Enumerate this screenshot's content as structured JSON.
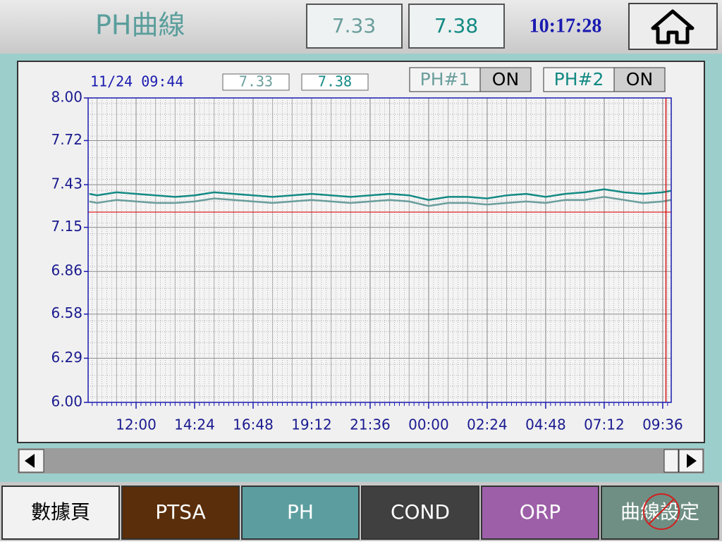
{
  "header": {
    "title": "PH曲線",
    "readouts": [
      "7.33",
      "7.38"
    ],
    "clock": "10:17:28"
  },
  "chart_data": {
    "type": "line",
    "cursor_label": "11/24 09:44",
    "cursor": "09:44",
    "cursor_values": [
      7.33,
      7.38
    ],
    "x": [
      "10:05",
      "10:24",
      "11:12",
      "12:00",
      "12:48",
      "13:36",
      "14:24",
      "15:12",
      "16:00",
      "16:48",
      "17:36",
      "18:24",
      "19:12",
      "20:00",
      "20:48",
      "21:36",
      "22:24",
      "23:12",
      "00:00",
      "00:48",
      "01:36",
      "02:24",
      "03:12",
      "04:00",
      "04:48",
      "05:36",
      "06:24",
      "07:12",
      "08:00",
      "08:48",
      "09:36",
      "09:56"
    ],
    "series": [
      {
        "name": "PH#1",
        "status": "ON",
        "color": "#6a9e9c",
        "values": [
          7.32,
          7.31,
          7.33,
          7.32,
          7.31,
          7.31,
          7.32,
          7.34,
          7.33,
          7.32,
          7.31,
          7.32,
          7.33,
          7.32,
          7.31,
          7.32,
          7.33,
          7.32,
          7.29,
          7.31,
          7.31,
          7.3,
          7.31,
          7.32,
          7.31,
          7.33,
          7.33,
          7.35,
          7.33,
          7.31,
          7.32,
          7.33
        ]
      },
      {
        "name": "PH#2",
        "status": "ON",
        "color": "#138a84",
        "values": [
          7.37,
          7.36,
          7.38,
          7.37,
          7.36,
          7.35,
          7.36,
          7.38,
          7.37,
          7.36,
          7.35,
          7.36,
          7.37,
          7.36,
          7.35,
          7.36,
          7.37,
          7.36,
          7.33,
          7.35,
          7.35,
          7.34,
          7.36,
          7.37,
          7.35,
          7.37,
          7.38,
          7.4,
          7.38,
          7.37,
          7.38,
          7.39
        ]
      }
    ],
    "xlim": [
      "10:02",
      "09:57"
    ],
    "xticks": [
      "12:00",
      "14:24",
      "16:48",
      "19:12",
      "21:36",
      "00:00",
      "02:24",
      "04:48",
      "07:12",
      "09:36"
    ],
    "ylim": [
      6,
      8
    ],
    "yticks": [
      {
        "value": 8,
        "label": "8.00"
      },
      {
        "value": 7.72,
        "label": "7.72"
      },
      {
        "value": 7.43,
        "label": "7.43"
      },
      {
        "value": 7.15,
        "label": "7.15"
      },
      {
        "value": 6.86,
        "label": "6.86"
      },
      {
        "value": 6.58,
        "label": "6.58"
      },
      {
        "value": 6.29,
        "label": "6.29"
      },
      {
        "value": 6,
        "label": "6.00"
      }
    ],
    "reference_line": 7.25,
    "grid": true
  },
  "tabs": [
    "數據頁",
    "PTSA",
    "PH",
    "COND",
    "ORP",
    "曲線設定"
  ]
}
